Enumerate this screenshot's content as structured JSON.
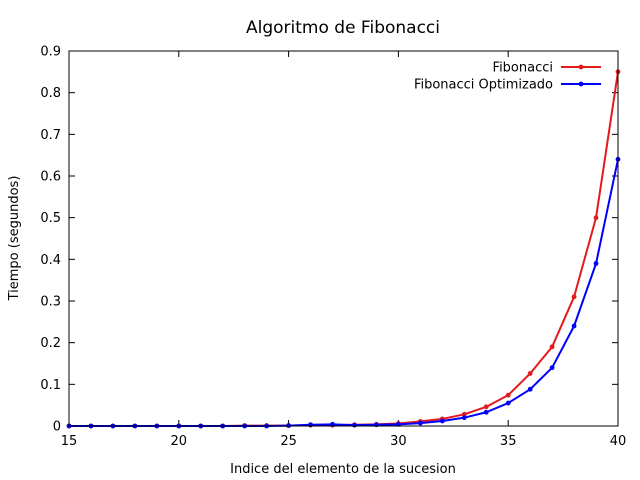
{
  "chart_data": {
    "type": "line",
    "title": "Algoritmo de Fibonacci",
    "xlabel": "Indice del elemento de la sucesion",
    "ylabel": "Tiempo (segundos)",
    "xlim": [
      15,
      40
    ],
    "ylim": [
      0,
      0.9
    ],
    "xticks": [
      15,
      20,
      25,
      30,
      35,
      40
    ],
    "yticks": [
      0,
      0.1,
      0.2,
      0.3,
      0.4,
      0.5,
      0.6,
      0.7,
      0.8,
      0.9
    ],
    "grid": false,
    "legend_position": "top-right",
    "x": [
      15,
      16,
      17,
      18,
      19,
      20,
      21,
      22,
      23,
      24,
      25,
      26,
      27,
      28,
      29,
      30,
      31,
      32,
      33,
      34,
      35,
      36,
      37,
      38,
      39,
      40
    ],
    "series": [
      {
        "name": "Fibonacci",
        "color": "#e41a1c",
        "values": [
          0,
          0,
          0,
          0,
          0,
          0,
          0,
          0,
          0.001,
          0.001,
          0.001,
          0.002,
          0.002,
          0.003,
          0.004,
          0.006,
          0.011,
          0.017,
          0.028,
          0.046,
          0.074,
          0.126,
          0.19,
          0.31,
          0.5,
          0.85
        ]
      },
      {
        "name": "Fibonacci Optimizado",
        "color": "#0000ff",
        "values": [
          0,
          0,
          0,
          0,
          0,
          0,
          0,
          0,
          0,
          0,
          0.001,
          0.003,
          0.004,
          0.002,
          0.003,
          0.004,
          0.007,
          0.012,
          0.02,
          0.033,
          0.055,
          0.088,
          0.14,
          0.24,
          0.39,
          0.64
        ]
      }
    ]
  }
}
